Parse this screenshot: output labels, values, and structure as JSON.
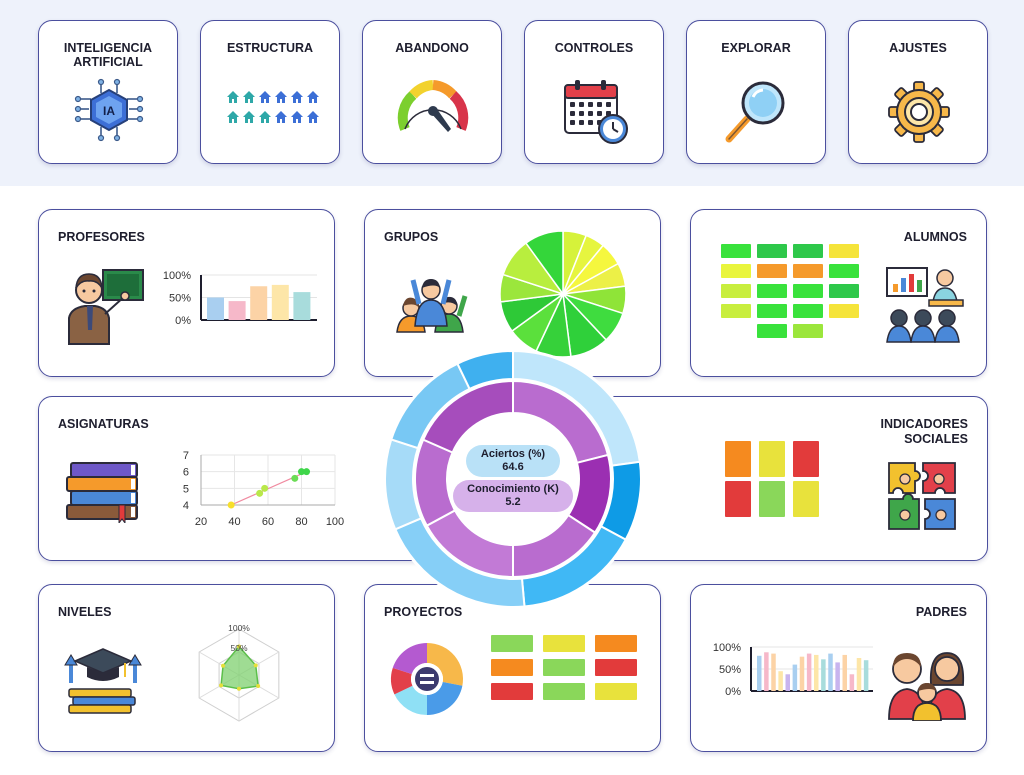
{
  "top_cards": [
    {
      "id": "ia",
      "title_lines": [
        "INTELIGENCIA",
        "ARTIFICIAL"
      ],
      "icon": "ai-chip-icon",
      "icon_text": "IA"
    },
    {
      "id": "estructura",
      "title_lines": [
        "ESTRUCTURA"
      ],
      "icon": "school-houses-icon"
    },
    {
      "id": "abandono",
      "title_lines": [
        "ABANDONO"
      ],
      "icon": "speedometer-gauge-icon"
    },
    {
      "id": "controles",
      "title_lines": [
        "CONTROLES"
      ],
      "icon": "calendar-clock-icon"
    },
    {
      "id": "explorar",
      "title_lines": [
        "EXPLORAR"
      ],
      "icon": "magnifier-icon"
    },
    {
      "id": "ajustes",
      "title_lines": [
        "AJUSTES"
      ],
      "icon": "gear-icon"
    }
  ],
  "profesores": {
    "title": "PROFESORES",
    "icon": "teacher-icon",
    "chart": {
      "type": "bar",
      "ticks": [
        "100%",
        "50%",
        "0%"
      ],
      "values": [
        50,
        42,
        75,
        78,
        62
      ],
      "colors": [
        "#a9cff0",
        "#f6b8c9",
        "#fcd3a6",
        "#fde6a8",
        "#a8dcdc"
      ]
    }
  },
  "grupos": {
    "title": "GRUPOS",
    "icon": "group-people-icon",
    "chart": {
      "type": "pie",
      "values": [
        6,
        5,
        6,
        6,
        7,
        8,
        10,
        9,
        8,
        8,
        7,
        10,
        10
      ],
      "colors": [
        "#d6f23a",
        "#e6f53f",
        "#f5f73e",
        "#ecf047",
        "#8fe438",
        "#3fdc3f",
        "#2fd03a",
        "#36d13a",
        "#5be03c",
        "#2ec937",
        "#9be63c",
        "#b8ee3e",
        "#34d63a"
      ]
    }
  },
  "alumnos": {
    "title": "ALUMNOS",
    "icon": "classroom-students-icon",
    "grid": [
      [
        "#39e23c",
        "#2ec84a",
        "#2ec84a",
        "#f5e43a"
      ],
      [
        "#e9f53d",
        "#f59a2b",
        "#f59a2b",
        "#39e23c"
      ],
      [
        "#c8ee3e",
        "#39e23c",
        "#39e23c",
        "#2ec84a"
      ],
      [
        "#c8ee3e",
        "#39e23c",
        "#39e23c",
        "#f5e43a"
      ],
      [
        null,
        "#39e23c",
        "#9be63c",
        null
      ]
    ]
  },
  "asignaturas": {
    "title": "ASIGNATURAS",
    "icon": "book-stack-icon",
    "chart": {
      "type": "scatter",
      "xticks": [
        "20",
        "40",
        "60",
        "80",
        "100"
      ],
      "yticks": [
        "7",
        "6",
        "5",
        "4"
      ],
      "xlim": [
        20,
        100
      ],
      "ylim": [
        4,
        7
      ],
      "points": [
        [
          38,
          4.0
        ],
        [
          55,
          4.7
        ],
        [
          58,
          5.0
        ],
        [
          76,
          5.6
        ],
        [
          80,
          6.0
        ],
        [
          83,
          6.0
        ]
      ],
      "colors": [
        "#f7df2c",
        "#b9e84a",
        "#b9e84a",
        "#6bdc55",
        "#3fd64a",
        "#3fd64a"
      ]
    }
  },
  "indicadores_sociales": {
    "title_lines": [
      "INDICADORES",
      "SOCIALES"
    ],
    "icon": "puzzle-hands-icon",
    "grid": [
      [
        "#f58a1f",
        "#e8e23c",
        "#e23b3b"
      ],
      [
        "#e23b3b",
        "#8ad75a",
        "#e8e23c"
      ]
    ]
  },
  "niveles": {
    "title": "NIVELES",
    "icon": "graduation-books-icon",
    "chart": {
      "type": "radar",
      "labels": [
        "100%",
        "50%"
      ],
      "values": [
        0.62,
        0.42,
        0.48,
        0.3,
        0.45,
        0.4
      ]
    }
  },
  "proyectos": {
    "title": "PROYECTOS",
    "icon": "project-donut-icon",
    "grid": [
      [
        "#8ad75a",
        "#e8e23c",
        "#f58a1f"
      ],
      [
        "#f58a1f",
        "#8ad75a",
        "#e23b3b"
      ],
      [
        "#e23b3b",
        "#8ad75a",
        "#e8e23c"
      ]
    ]
  },
  "padres": {
    "title": "PADRES",
    "icon": "family-icon",
    "chart": {
      "type": "bar",
      "ticks": [
        "100%",
        "50%",
        "0%"
      ],
      "values": [
        80,
        88,
        85,
        45,
        38,
        60,
        78,
        85,
        82,
        72,
        85,
        65,
        82,
        38,
        75,
        70
      ],
      "colors": [
        "#a9cff0",
        "#f6b8c9",
        "#fcd3a6",
        "#fde6a8",
        "#c8b4ee",
        "#a9cff0",
        "#fcd3a6",
        "#f6b8c9",
        "#fde6a8",
        "#a8dcdc",
        "#a9cff0",
        "#c8b4ee",
        "#fcd3a6",
        "#f6b8c9",
        "#fde6a8",
        "#a8dcdc"
      ]
    }
  },
  "center": {
    "aciertos_label": "Aciertos (%)",
    "aciertos_value": "64.6",
    "conocimiento_label": "Conocimiento (K)",
    "conocimiento_value": "5.2",
    "outer_ring": [
      {
        "value": 16,
        "color": "#bfe6fb"
      },
      {
        "value": 7,
        "color": "#0e9be6"
      },
      {
        "value": 11,
        "color": "#40b8f5"
      },
      {
        "value": 14,
        "color": "#86cff7"
      },
      {
        "value": 8,
        "color": "#a6dbf8"
      },
      {
        "value": 9,
        "color": "#78c8f4"
      },
      {
        "value": 5,
        "color": "#3fb0ef"
      }
    ],
    "inner_ring": [
      {
        "value": 16,
        "color": "#b96ccf"
      },
      {
        "value": 10,
        "color": "#9b2fb2"
      },
      {
        "value": 12,
        "color": "#b96ccf"
      },
      {
        "value": 13,
        "color": "#c27ad6"
      },
      {
        "value": 11,
        "color": "#b96ccf"
      },
      {
        "value": 14,
        "color": "#a64dbc"
      }
    ]
  }
}
